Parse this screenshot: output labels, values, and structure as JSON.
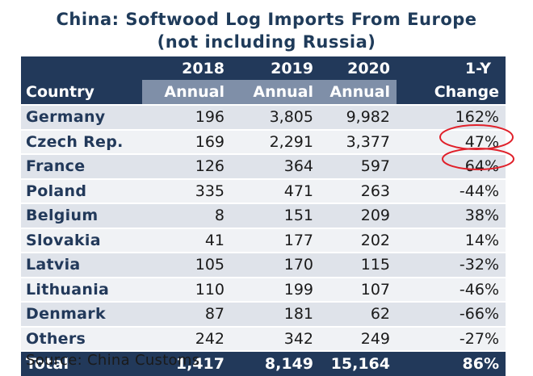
{
  "chart_data": {
    "type": "table",
    "title_line1": "China: Softwood Log Imports From Europe",
    "title_line2": "(not including Russia)",
    "header_years": [
      "2018",
      "2019",
      "2020",
      "1-Y"
    ],
    "header_sub": [
      "Annual",
      "Annual",
      "Annual",
      "Change"
    ],
    "country_header": "Country",
    "rows": [
      {
        "country": "Germany",
        "v2018": "196",
        "v2019": "3,805",
        "v2020": "9,982",
        "change": "162%"
      },
      {
        "country": "Czech Rep.",
        "v2018": "169",
        "v2019": "2,291",
        "v2020": "3,377",
        "change": "47%"
      },
      {
        "country": "France",
        "v2018": "126",
        "v2019": "364",
        "v2020": "597",
        "change": "64%"
      },
      {
        "country": "Poland",
        "v2018": "335",
        "v2019": "471",
        "v2020": "263",
        "change": "-44%"
      },
      {
        "country": "Belgium",
        "v2018": "8",
        "v2019": "151",
        "v2020": "209",
        "change": "38%"
      },
      {
        "country": "Slovakia",
        "v2018": "41",
        "v2019": "177",
        "v2020": "202",
        "change": "14%"
      },
      {
        "country": "Latvia",
        "v2018": "105",
        "v2019": "170",
        "v2020": "115",
        "change": "-32%"
      },
      {
        "country": "Lithuania",
        "v2018": "110",
        "v2019": "199",
        "v2020": "107",
        "change": "-46%"
      },
      {
        "country": "Denmark",
        "v2018": "87",
        "v2019": "181",
        "v2020": "62",
        "change": "-66%"
      },
      {
        "country": "Others",
        "v2018": "242",
        "v2019": "342",
        "v2020": "249",
        "change": "-27%"
      }
    ],
    "total": {
      "country": "Total",
      "v2018": "1,417",
      "v2019": "8,149",
      "v2020": "15,164",
      "change": "86%"
    },
    "source": "Source: China Customs",
    "highlight_circle_color": "#e0202a",
    "header_color": "#22395a",
    "subheader_color": "#7f8fa8"
  }
}
